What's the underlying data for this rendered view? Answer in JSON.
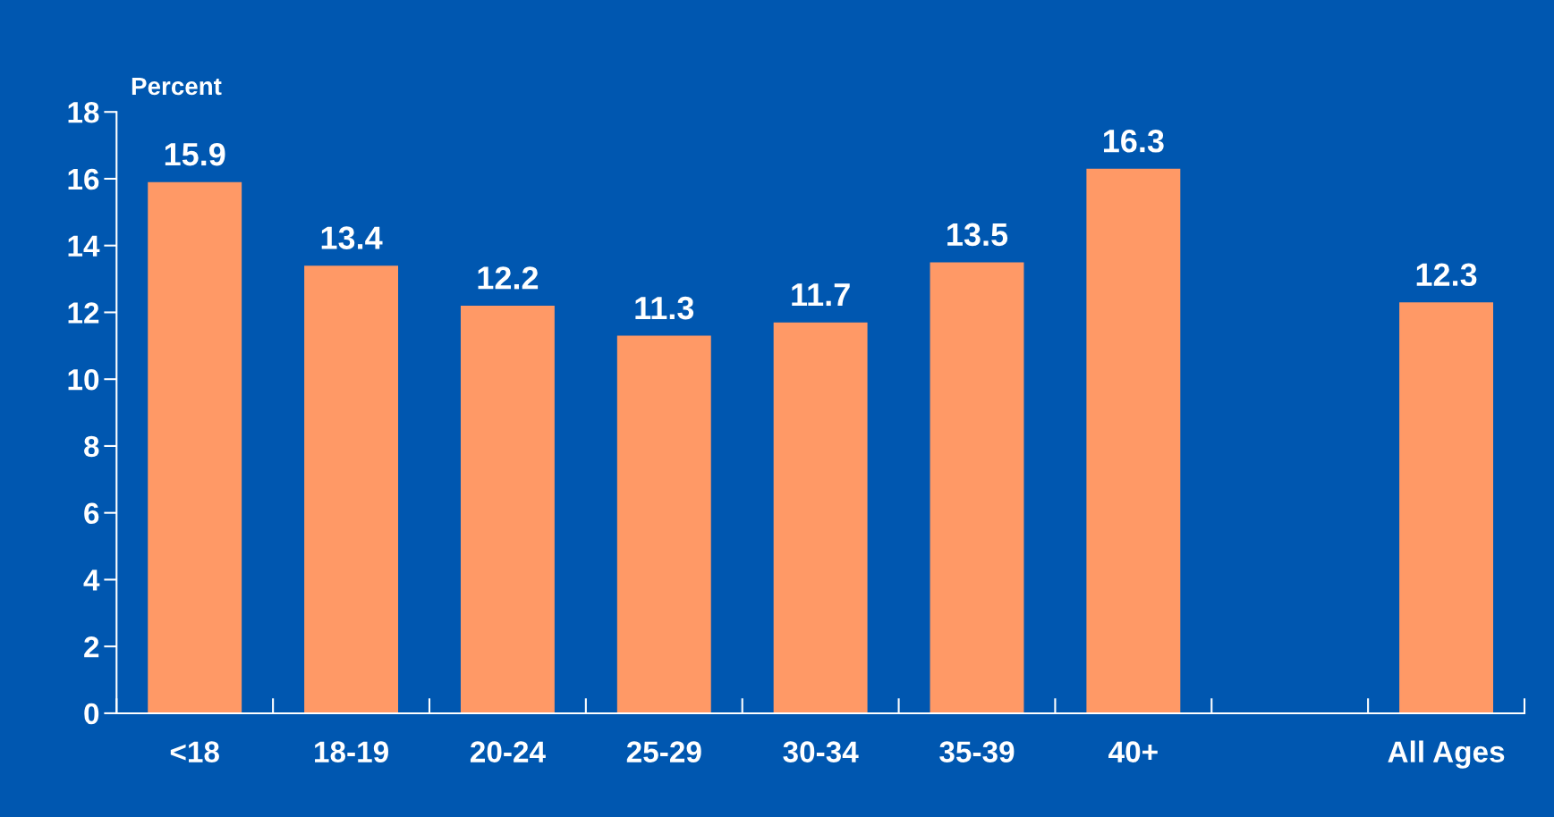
{
  "chart_data": {
    "type": "bar",
    "ylabel": "Percent",
    "categories": [
      "<18",
      "18-19",
      "20-24",
      "25-29",
      "30-34",
      "35-39",
      "40+",
      null,
      "All Ages"
    ],
    "values": [
      15.9,
      13.4,
      12.2,
      11.3,
      11.7,
      13.5,
      16.3,
      null,
      12.3
    ],
    "color": "#ff9966",
    "ylim": [
      0,
      18
    ],
    "yticks": [
      0,
      2,
      4,
      6,
      8,
      10,
      12,
      14,
      16,
      18
    ],
    "data_labels": true,
    "grid": false,
    "legend": false
  }
}
